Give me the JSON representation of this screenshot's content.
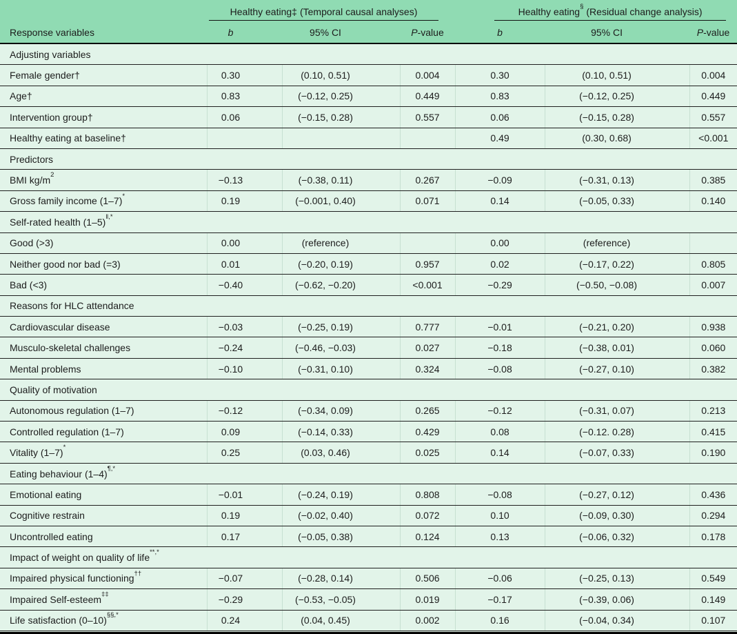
{
  "colors": {
    "header_bg": "#90dbb3",
    "body_bg": "#e2f4e9",
    "vline": "#c6e0d1",
    "text": "#1c1c1c"
  },
  "header": {
    "response_col": "Response variables",
    "b_label": "b",
    "ci_label": "95% CI",
    "p_label_italic": "P",
    "p_label_rest": "-value",
    "groups": [
      {
        "name": "Healthy eating",
        "marker": "‡",
        "subtitle": "(Temporal causal analyses)"
      },
      {
        "name": "Healthy eating",
        "marker": "§",
        "subtitle": "(Residual change analysis)"
      }
    ]
  },
  "rows": [
    {
      "type": "section",
      "label": "Adjusting variables",
      "sup": ""
    },
    {
      "type": "data",
      "label": "Female gender†",
      "sup": "",
      "cells": [
        "0.30",
        "(0.10, 0.51)",
        "0.004",
        "0.30",
        "(0.10, 0.51)",
        "0.004"
      ]
    },
    {
      "type": "data",
      "label": "Age†",
      "sup": "",
      "cells": [
        "0.83",
        "(−0.12, 0.25)",
        "0.449",
        "0.83",
        "(−0.12, 0.25)",
        "0.449"
      ]
    },
    {
      "type": "data",
      "label": "Intervention group†",
      "sup": "",
      "cells": [
        "0.06",
        "(−0.15, 0.28)",
        "0.557",
        "0.06",
        "(−0.15, 0.28)",
        "0.557"
      ]
    },
    {
      "type": "data",
      "label": "Healthy eating at baseline†",
      "sup": "",
      "cells": [
        "",
        "",
        "",
        "0.49",
        "(0.30, 0.68)",
        "<0.001"
      ]
    },
    {
      "type": "section",
      "label": "Predictors",
      "sup": ""
    },
    {
      "type": "data",
      "label": "BMI kg/m",
      "sup": "2",
      "cells": [
        "−0.13",
        "(−0.38, 0.11)",
        "0.267",
        "−0.09",
        "(−0.31, 0.13)",
        "0.385"
      ]
    },
    {
      "type": "data",
      "label": "Gross family income (1–7)",
      "sup": "*",
      "cells": [
        "0.19",
        "(−0.001, 0.40)",
        "0.071",
        "0.14",
        "(−0.05, 0.33)",
        "0.140"
      ]
    },
    {
      "type": "section",
      "label": "Self-rated health (1–5)",
      "sup": "‖,*"
    },
    {
      "type": "data",
      "label": "Good (>3)",
      "sup": "",
      "cells": [
        "0.00",
        "(reference)",
        "",
        "0.00",
        "(reference)",
        ""
      ]
    },
    {
      "type": "data",
      "label": "Neither good nor bad (=3)",
      "sup": "",
      "cells": [
        "0.01",
        "(−0.20, 0.19)",
        "0.957",
        "0.02",
        "(−0.17, 0.22)",
        "0.805"
      ]
    },
    {
      "type": "data",
      "label": "Bad (<3)",
      "sup": "",
      "cells": [
        "−0.40",
        "(−0.62, −0.20)",
        "<0.001",
        "−0.29",
        "(−0.50, −0.08)",
        "0.007"
      ]
    },
    {
      "type": "section",
      "label": "Reasons for HLC attendance",
      "sup": ""
    },
    {
      "type": "data",
      "label": "Cardiovascular disease",
      "sup": "",
      "cells": [
        "−0.03",
        "(−0.25, 0.19)",
        "0.777",
        "−0.01",
        "(−0.21, 0.20)",
        "0.938"
      ]
    },
    {
      "type": "data",
      "label": "Musculo-skeletal challenges",
      "sup": "",
      "cells": [
        "−0.24",
        "(−0.46, −0.03)",
        "0.027",
        "−0.18",
        "(−0.38, 0.01)",
        "0.060"
      ]
    },
    {
      "type": "data",
      "label": "Mental problems",
      "sup": "",
      "cells": [
        "−0.10",
        "(−0.31, 0.10)",
        "0.324",
        "−0.08",
        "(−0.27, 0.10)",
        "0.382"
      ]
    },
    {
      "type": "section",
      "label": "Quality of motivation",
      "sup": ""
    },
    {
      "type": "data",
      "label": "Autonomous regulation (1–7)",
      "sup": "",
      "cells": [
        "−0.12",
        "(−0.34, 0.09)",
        "0.265",
        "−0.12",
        "(−0.31, 0.07)",
        "0.213"
      ]
    },
    {
      "type": "data",
      "label": "Controlled regulation (1–7)",
      "sup": "",
      "cells": [
        "0.09",
        "(−0.14, 0.33)",
        "0.429",
        "0.08",
        "(−0.12. 0.28)",
        "0.415"
      ]
    },
    {
      "type": "data",
      "label": "Vitality (1–7)",
      "sup": "*",
      "cells": [
        "0.25",
        "(0.03, 0.46)",
        "0.025",
        "0.14",
        "(−0.07, 0.33)",
        "0.190"
      ]
    },
    {
      "type": "section",
      "label": "Eating behaviour (1–4)",
      "sup": "¶,*"
    },
    {
      "type": "data",
      "label": "Emotional eating",
      "sup": "",
      "cells": [
        "−0.01",
        "(−0.24, 0.19)",
        "0.808",
        "−0.08",
        "(−0.27, 0.12)",
        "0.436"
      ]
    },
    {
      "type": "data",
      "label": "Cognitive restrain",
      "sup": "",
      "cells": [
        "0.19",
        "(−0.02, 0.40)",
        "0.072",
        "0.10",
        "(−0.09, 0.30)",
        "0.294"
      ]
    },
    {
      "type": "data",
      "label": "Uncontrolled eating",
      "sup": "",
      "cells": [
        "0.17",
        "(−0.05, 0.38)",
        "0.124",
        "0.13",
        "(−0.06, 0.32)",
        "0.178"
      ]
    },
    {
      "type": "section",
      "label": "Impact of weight on quality of life",
      "sup": "**,*"
    },
    {
      "type": "data",
      "label": "Impaired physical functioning",
      "sup": "††",
      "cells": [
        "−0.07",
        "(−0.28, 0.14)",
        "0.506",
        "−0.06",
        "(−0.25, 0.13)",
        "0.549"
      ]
    },
    {
      "type": "data",
      "label": "Impaired Self-esteem",
      "sup": "‡‡",
      "cells": [
        "−0.29",
        "(−0.53, −0.05)",
        "0.019",
        "−0.17",
        "(−0.39, 0.06)",
        "0.149"
      ]
    },
    {
      "type": "data",
      "label": "Life satisfaction (0–10)",
      "sup": "§§,*",
      "cells": [
        "0.24",
        "(0.04, 0.45)",
        "0.002",
        "0.16",
        "(−0.04, 0.34)",
        "0.107"
      ]
    }
  ]
}
